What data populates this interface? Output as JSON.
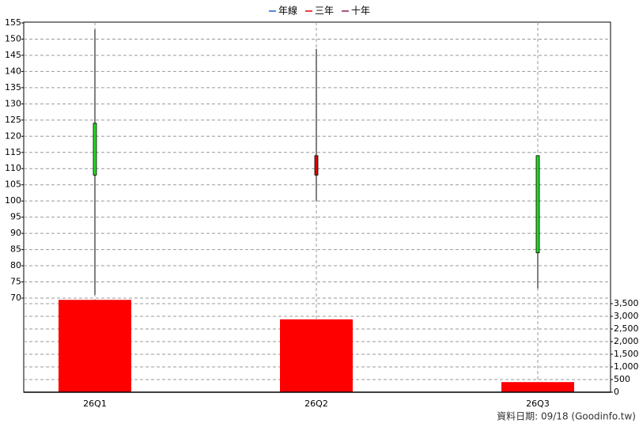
{
  "chart_data": {
    "type": "candlestick",
    "legend": [
      {
        "name": "年線",
        "color": "#1f5fd0"
      },
      {
        "name": "三年",
        "color": "#e00000"
      },
      {
        "name": "十年",
        "color": "#8b1a5a"
      }
    ],
    "categories": [
      "26Q1",
      "26Q2",
      "26Q3"
    ],
    "open": [
      124,
      108,
      114
    ],
    "high": [
      153,
      147,
      114
    ],
    "low": [
      71,
      100,
      73
    ],
    "close": [
      108,
      114,
      84
    ],
    "up_color": "#e00000",
    "down_color": "#22dd22",
    "volume": {
      "name": "volume",
      "color": "#ff0000",
      "axis": "y2",
      "values": [
        3650,
        2880,
        400
      ]
    },
    "ylim": [
      70,
      155
    ],
    "yticks": [
      70,
      75,
      80,
      85,
      90,
      95,
      100,
      105,
      110,
      115,
      120,
      125,
      130,
      135,
      140,
      145,
      150,
      155
    ],
    "y2lim": [
      0,
      3500
    ],
    "y2ticks": [
      0,
      500,
      {
        "value": 1000,
        "label": "1,000"
      },
      {
        "value": 1500,
        "label": "1,500"
      },
      {
        "value": 2000,
        "label": "2,000"
      },
      {
        "value": 2500,
        "label": "2,500"
      },
      {
        "value": 3000,
        "label": "3,000"
      },
      {
        "value": 3500,
        "label": "3,500"
      }
    ],
    "grid": true,
    "footer": "資料日期: 09/18  (Goodinfo.tw)"
  }
}
